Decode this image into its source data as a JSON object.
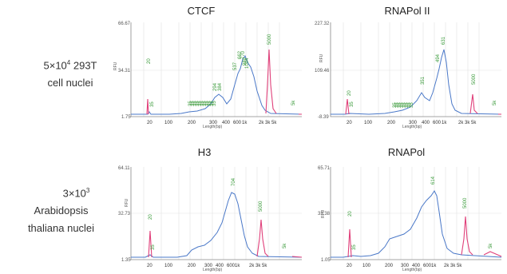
{
  "rows": [
    {
      "line1": "5×10",
      "sup": "4",
      "line1b": " 293T",
      "line2": "cell nuclei"
    },
    {
      "line1": "3×10",
      "sup": "3",
      "line2": "Arabidopsis",
      "line3": "thaliana nuclei"
    }
  ],
  "panels": [
    {
      "title": "CTCF",
      "ylabel": "RFU",
      "xlabel": "Length(bp)",
      "yticks": [
        "66.67",
        "34.31",
        "1.75"
      ],
      "xticks": [
        "20",
        "100",
        "200",
        "300",
        "400",
        "600",
        "1k",
        "2k",
        "3k",
        "5k"
      ],
      "peak_labels": [
        "20",
        "35",
        "35",
        "35",
        "35",
        "35",
        "35",
        "35",
        "35",
        "35",
        "35",
        "35",
        "35",
        "294",
        "384",
        "537",
        "662",
        "770",
        "980",
        "1094",
        "5000",
        "5k"
      ]
    },
    {
      "title": "RNAPol II",
      "ylabel": "RFU",
      "xlabel": "Length(bp)",
      "yticks": [
        "227.32",
        "109.46",
        "-8.39"
      ],
      "xticks": [
        "20",
        "100",
        "200",
        "300",
        "400",
        "600",
        "1k",
        "2k",
        "3k",
        "5k"
      ],
      "peak_labels": [
        "20",
        "35",
        "35",
        "35",
        "35",
        "35",
        "35",
        "35",
        "35",
        "35",
        "351",
        "494",
        "631",
        "5000",
        "5k"
      ]
    },
    {
      "title": "H3",
      "ylabel": "RFU",
      "xlabel": "Length(bp)",
      "yticks": [
        "64.11",
        "32.73",
        "1.35"
      ],
      "xticks": [
        "20",
        "100",
        "200",
        "300",
        "400",
        "600",
        "1k",
        "2k",
        "3k",
        "5k"
      ],
      "peak_labels": [
        "20",
        "35",
        "704",
        "5000",
        "5k"
      ]
    },
    {
      "title": "RNAPol",
      "ylabel": "RFU",
      "xlabel": "Length(bp)",
      "yticks": [
        "65.71",
        "33.38",
        "1.05"
      ],
      "xticks": [
        "20",
        "100",
        "200",
        "300",
        "400",
        "600",
        "1k",
        "2k",
        "3k",
        "5k"
      ],
      "peak_labels": [
        "20",
        "35",
        "614",
        "5000",
        "5k"
      ]
    }
  ],
  "colors": {
    "trace": "#4a78c8",
    "marker": "#e0407a",
    "peak_label": "#3a9a3a",
    "grid": "#e2e2e2",
    "axis": "#888888"
  }
}
